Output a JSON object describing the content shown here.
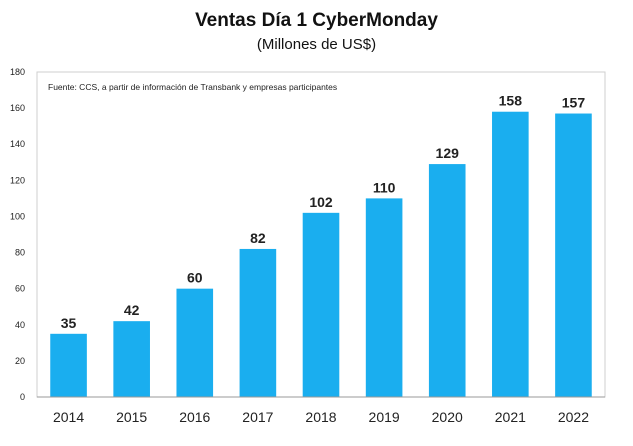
{
  "chart_data": {
    "type": "bar",
    "title": "Ventas Día 1 CyberMonday",
    "subtitle": "(Millones de US$)",
    "source_note": "Fuente: CCS, a partir de información de Transbank y empresas participantes",
    "categories": [
      "2014",
      "2015",
      "2016",
      "2017",
      "2018",
      "2019",
      "2020",
      "2021",
      "2022"
    ],
    "values": [
      35,
      42,
      60,
      82,
      102,
      110,
      129,
      158,
      157
    ],
    "ylim": [
      0,
      180
    ],
    "yticks": [
      0,
      20,
      40,
      60,
      80,
      100,
      120,
      140,
      160,
      180
    ],
    "xlabel": "",
    "ylabel": "",
    "bar_color": "#1aaeef",
    "grid": false
  }
}
